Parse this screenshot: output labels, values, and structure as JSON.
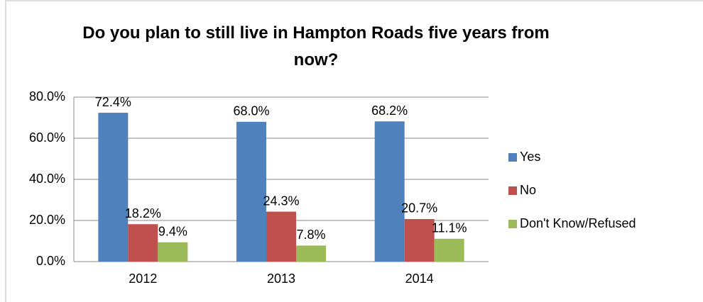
{
  "chart_data": {
    "type": "bar",
    "title": "Do you plan to still live in Hampton Roads five years from now?",
    "categories": [
      "2012",
      "2013",
      "2014"
    ],
    "series": [
      {
        "name": "Yes",
        "color": "#4f81bd",
        "values": [
          72.4,
          68.0,
          68.2
        ],
        "value_labels": [
          "72.4%",
          "68.0%",
          "68.2%"
        ]
      },
      {
        "name": "No",
        "color": "#c0504d",
        "values": [
          18.2,
          24.3,
          20.7
        ],
        "value_labels": [
          "18.2%",
          "24.3%",
          "20.7%"
        ]
      },
      {
        "name": "Don't Know/Refused",
        "color": "#9bbb59",
        "values": [
          9.4,
          7.8,
          11.1
        ],
        "value_labels": [
          "9.4%",
          "7.8%",
          "11.1%"
        ]
      }
    ],
    "ylim": [
      0,
      80
    ],
    "yticks": [
      {
        "value": 0,
        "label": "0.0%"
      },
      {
        "value": 20,
        "label": "20.0%"
      },
      {
        "value": 40,
        "label": "40.0%"
      },
      {
        "value": 60,
        "label": "60.0%"
      },
      {
        "value": 80,
        "label": "80.0%"
      }
    ],
    "grid": true,
    "legend": "right"
  }
}
